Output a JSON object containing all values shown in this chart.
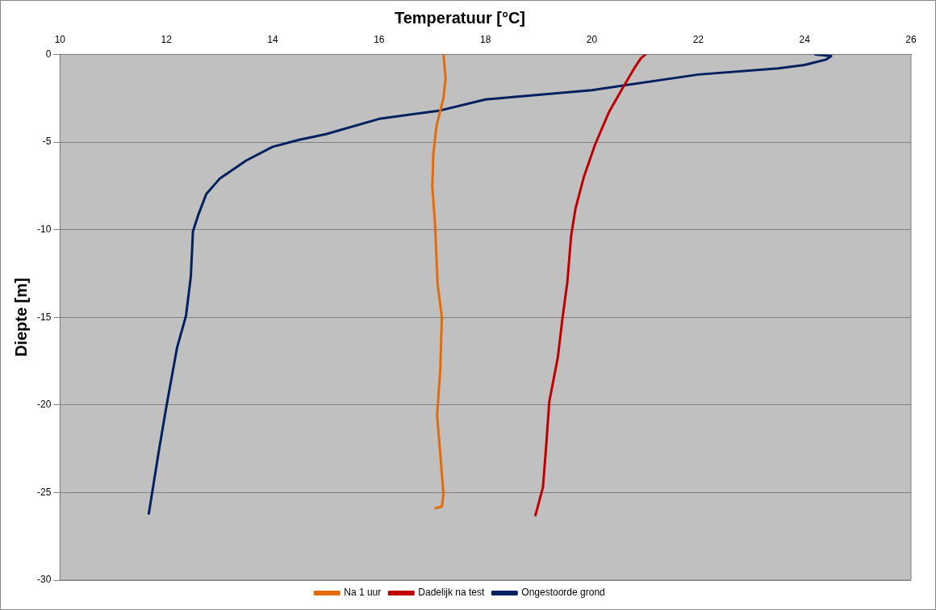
{
  "chart_data": {
    "type": "line",
    "title": "Temperatuur [°C]",
    "ylabel": "Diepte [m]",
    "xlim": [
      10,
      26
    ],
    "xticks": [
      10,
      12,
      14,
      16,
      18,
      20,
      22,
      24,
      26
    ],
    "ylim": [
      -30,
      0
    ],
    "yticks": [
      -30,
      -25,
      -20,
      -15,
      -10,
      -5,
      0
    ],
    "grid": "y",
    "legend": "bottom",
    "marker": "none",
    "line_style": "solid",
    "series": [
      {
        "name": "Na 1 uur",
        "color": "#e36c09",
        "x": [
          17.21,
          17.25,
          17.21,
          17.08,
          17.02,
          17.0,
          17.05,
          17.1,
          17.18,
          17.15,
          17.09,
          17.15,
          17.21,
          17.18,
          17.06
        ],
        "values": [
          0,
          -1.37,
          -2.49,
          -4.07,
          -5.67,
          -7.56,
          -9.6,
          -13.1,
          -15.0,
          -18.0,
          -20.6,
          -22.8,
          -25.1,
          -25.8,
          -25.9
        ]
      },
      {
        "name": "Dadelijk na test",
        "color": "#c00000",
        "x": [
          21.01,
          20.92,
          20.79,
          20.58,
          20.32,
          20.06,
          19.85,
          19.69,
          19.61,
          19.54,
          19.45,
          19.36,
          19.2,
          19.14,
          19.08,
          18.94
        ],
        "values": [
          0,
          -0.23,
          -0.83,
          -1.92,
          -3.3,
          -5.15,
          -6.99,
          -8.83,
          -10.37,
          -12.97,
          -15.0,
          -17.3,
          -19.8,
          -22.4,
          -24.7,
          -26.3
        ]
      },
      {
        "name": "Ongestoorde grond",
        "color": "#002060",
        "x": [
          24.2,
          24.5,
          24.4,
          24.0,
          23.5,
          22.0,
          20.0,
          18.0,
          17.15,
          16.0,
          15.0,
          14.5,
          14.0,
          13.5,
          13.0,
          12.75,
          12.6,
          12.5,
          12.46,
          12.37,
          12.2,
          12.0,
          11.86,
          11.67
        ],
        "values": [
          0,
          -0.1,
          -0.3,
          -0.6,
          -0.8,
          -1.15,
          -2.04,
          -2.57,
          -3.2,
          -3.68,
          -4.55,
          -4.87,
          -5.27,
          -6.06,
          -7.1,
          -7.97,
          -9.16,
          -10.1,
          -12.67,
          -14.9,
          -16.75,
          -20.1,
          -22.6,
          -26.2
        ]
      }
    ]
  }
}
